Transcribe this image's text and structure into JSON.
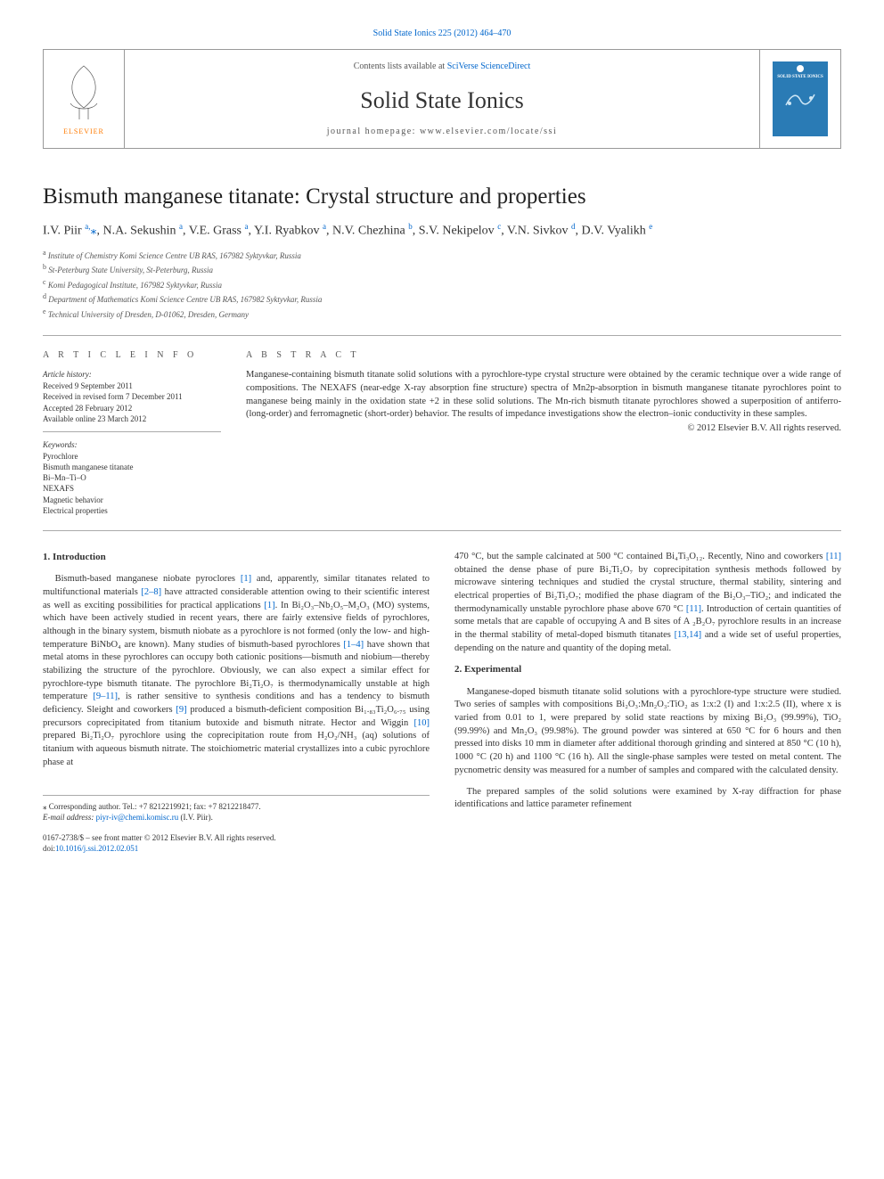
{
  "top_link_prefix": "Solid State Ionics 225 (2012) 464–470",
  "header": {
    "contents_prefix": "Contents lists available at ",
    "contents_link": "SciVerse ScienceDirect",
    "journal": "Solid State Ionics",
    "homepage_label": "journal homepage: www.elsevier.com/locate/ssi",
    "cover_text": "SOLID STATE IONICS"
  },
  "title": "Bismuth manganese titanate: Crystal structure and properties",
  "authors": "I.V. Piir <sup>a,</sup><span class=\"corr\">⁎</span>, N.A. Sekushin <sup>a</sup>, V.E. Grass <sup>a</sup>, Y.I. Ryabkov <sup>a</sup>, N.V. Chezhina <sup>b</sup>, S.V. Nekipelov <sup>c</sup>, V.N. Sivkov <sup>d</sup>, D.V. Vyalikh <sup>e</sup>",
  "affiliations": [
    {
      "sup": "a",
      "text": "Institute of Chemistry Komi Science Centre UB RAS, 167982 Syktyvkar, Russia"
    },
    {
      "sup": "b",
      "text": "St-Peterburg State University, St-Peterburg, Russia"
    },
    {
      "sup": "c",
      "text": "Komi Pedagogical Institute, 167982 Syktyvkar, Russia"
    },
    {
      "sup": "d",
      "text": "Department of Mathematics Komi Science Centre UB RAS, 167982 Syktyvkar, Russia"
    },
    {
      "sup": "e",
      "text": "Technical University of Dresden, D-01062, Dresden, Germany"
    }
  ],
  "info": {
    "head": "A R T I C L E   I N F O",
    "history_head": "Article history:",
    "history": [
      "Received 9 September 2011",
      "Received in revised form 7 December 2011",
      "Accepted 28 February 2012",
      "Available online 23 March 2012"
    ],
    "keywords_head": "Keywords:",
    "keywords": [
      "Pyrochlore",
      "Bismuth manganese titanate",
      "Bi–Mn–Ti–O",
      "NEXAFS",
      "Magnetic behavior",
      "Electrical properties"
    ]
  },
  "abstract": {
    "head": "A B S T R A C T",
    "text": "Manganese-containing bismuth titanate solid solutions with a pyrochlore-type crystal structure were obtained by the ceramic technique over a wide range of compositions. The NEXAFS (near-edge X-ray absorption fine structure) spectra of Mn2p-absorption in bismuth manganese titanate pyrochlores point to manganese being mainly in the oxidation state +2 in these solid solutions. The Mn-rich bismuth titanate pyrochlores showed a superposition of antiferro- (long-order) and ferromagnetic (short-order) behavior. The results of impedance investigations show the electron–ionic conductivity in these samples.",
    "copyright": "© 2012 Elsevier B.V. All rights reserved."
  },
  "intro": {
    "head": "1. Introduction",
    "p1_a": "Bismuth-based manganese niobate pyroclores ",
    "p1_ref1": "[1]",
    "p1_b": " and, apparently, similar titanates related to multifunctional materials ",
    "p1_ref2": "[2–8]",
    "p1_c": " have attracted considerable attention owing to their scientific interest as well as exciting possibilities for practical applications ",
    "p1_ref3": "[1]",
    "p1_d": ". In Bi₂O₃–Nb₂O₅–M₂O₃ (MO) systems, which have been actively studied in recent years, there are fairly extensive fields of pyrochlores, although in the binary system, bismuth niobate as a pyrochlore is not formed (only the low- and high- temperature BiNbO₄ are known). Many studies of bismuth-based pyrochlores ",
    "p1_ref4": "[1–4]",
    "p1_e": " have shown that metal atoms in these pyrochlores can occupy both cationic positions—bismuth and niobium—thereby stabilizing the structure of the pyrochlore. Obviously, we can also expect a similar effect for pyrochlore-type bismuth titanate. The pyrochlore Bi₂Ti₂O₇ is thermodynamically unstable at high temperature ",
    "p1_ref5": "[9–11]",
    "p1_f": ", is rather sensitive to synthesis conditions and has a tendency to bismuth deficiency. Sleight and coworkers ",
    "p1_ref6": "[9]",
    "p1_g": " produced a bismuth-deficient composition Bi₁.₈₃Ti₂O₆.₇₅ using precursors coprecipitated from titanium butoxide and bismuth nitrate. Hector and Wiggin ",
    "p1_ref7": "[10]",
    "p1_h": " prepared Bi₂Ti₂O₇ pyrochlore using the coprecipitation route from H₂O₂/NH₃ (aq) solutions of titanium with aqueous bismuth nitrate. The stoichiometric material crystallizes into a cubic pyrochlore phase at ",
    "p2_a": "470 °C, but the sample calcinated at 500 °C contained Bi₄Ti₃O₁₂. Recently, Nino and coworkers ",
    "p2_ref1": "[11]",
    "p2_b": " obtained the dense phase of pure Bi₂Ti₂O₇ by coprecipitation synthesis methods followed by microwave sintering techniques and studied the crystal structure, thermal stability, sintering and electrical properties of Bi₂Ti₂O₇; modified the phase diagram of the Bi₂O₃–TiO₂; and indicated the thermodynamically unstable pyrochlore phase above 670 °C ",
    "p2_ref2": "[11]",
    "p2_c": ". Introduction of certain quantities of some metals that are capable of occupying A and B sites of A ₂B₂O₇ pyrochlore results in an increase in the thermal stability of metal-doped bismuth titanates ",
    "p2_ref3": "[13,14]",
    "p2_d": " and a wide set of useful properties, depending on the nature and quantity of the doping metal."
  },
  "experimental": {
    "head": "2. Experimental",
    "p1": "Manganese-doped bismuth titanate solid solutions with a pyrochlore-type structure were studied. Two series of samples with compositions Bi₂O₃:Mn₂O₃:TiO₂ as 1:x:2 (I) and 1:x:2.5 (II), where x is varied from 0.01 to 1, were prepared by solid state reactions by mixing Bi₂O₃ (99.99%), TiO₂ (99.99%) and Mn₂O₃ (99.98%). The ground powder was sintered at 650 °C for 6 hours and then pressed into disks 10 mm in diameter after additional thorough grinding and sintered at 850 °C (10 h), 1000 °C (20 h) and 1100 °C (16 h). All the single-phase samples were tested on metal content. The pycnometric density was measured for a number of samples and compared with the calculated density.",
    "p2": "The prepared samples of the solid solutions were examined by X-ray diffraction for phase identifications and lattice parameter refinement"
  },
  "footer": {
    "corr": "⁎ Corresponding author. Tel.: +7 8212219921; fax: +7 8212218477.",
    "email_label": "E-mail address: ",
    "email": "piyr-iv@chemi.komisc.ru",
    "email_suffix": " (I.V. Piir).",
    "issn": "0167-2738/$ – see front matter © 2012 Elsevier B.V. All rights reserved.",
    "doi_label": "doi:",
    "doi": "10.1016/j.ssi.2012.02.051"
  },
  "colors": {
    "link": "#0066cc",
    "text": "#333333",
    "border": "#999999",
    "cover_bg": "#2a7bb5",
    "elsevier_orange": "#ff7a00"
  }
}
